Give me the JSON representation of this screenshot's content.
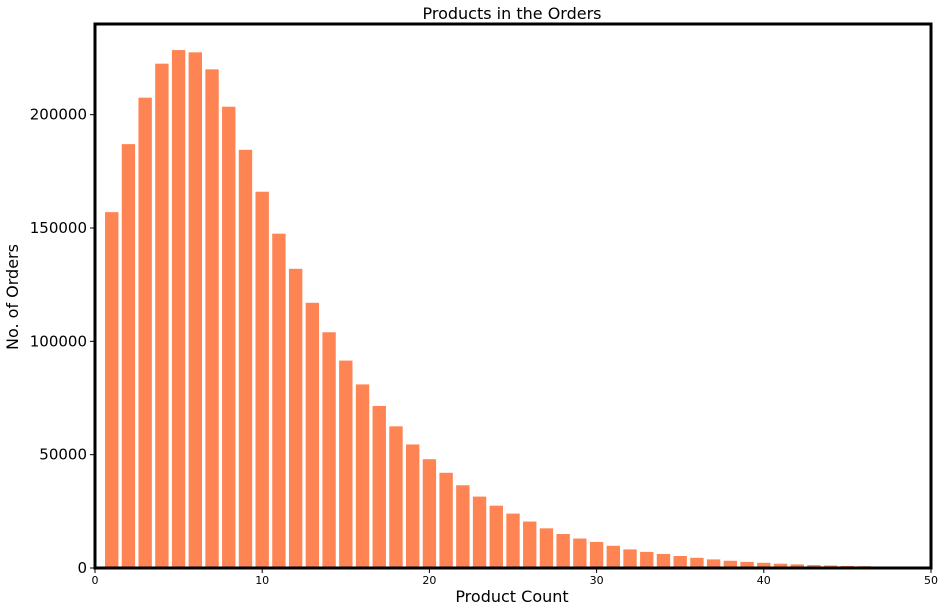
{
  "chart_data": {
    "type": "bar",
    "title": "Products in the Orders",
    "xlabel": "Product Count",
    "ylabel": "No. of Orders",
    "xlim": [
      0,
      50
    ],
    "ylim": [
      0,
      240000
    ],
    "xticks": [
      0,
      10,
      20,
      30,
      40,
      50
    ],
    "yticks": [
      0,
      50000,
      100000,
      150000,
      200000
    ],
    "grid": false,
    "bar_color": "#ff8454",
    "x": [
      1,
      2,
      3,
      4,
      5,
      6,
      7,
      8,
      9,
      10,
      11,
      12,
      13,
      14,
      15,
      16,
      17,
      18,
      19,
      20,
      21,
      22,
      23,
      24,
      25,
      26,
      27,
      28,
      29,
      30,
      31,
      32,
      33,
      34,
      35,
      36,
      37,
      38,
      39,
      40,
      41,
      42,
      43,
      44,
      45,
      46,
      47,
      48
    ],
    "values": [
      157000,
      187000,
      207500,
      222500,
      228500,
      227500,
      220000,
      203500,
      184500,
      166000,
      147500,
      132000,
      117000,
      104000,
      91500,
      81000,
      71500,
      62500,
      54500,
      48000,
      42000,
      36500,
      31500,
      27500,
      24000,
      20500,
      17500,
      15000,
      13000,
      11500,
      9800,
      8200,
      7100,
      6200,
      5300,
      4500,
      3800,
      3200,
      2700,
      2300,
      1900,
      1600,
      1300,
      1100,
      900,
      800,
      650,
      550
    ]
  }
}
